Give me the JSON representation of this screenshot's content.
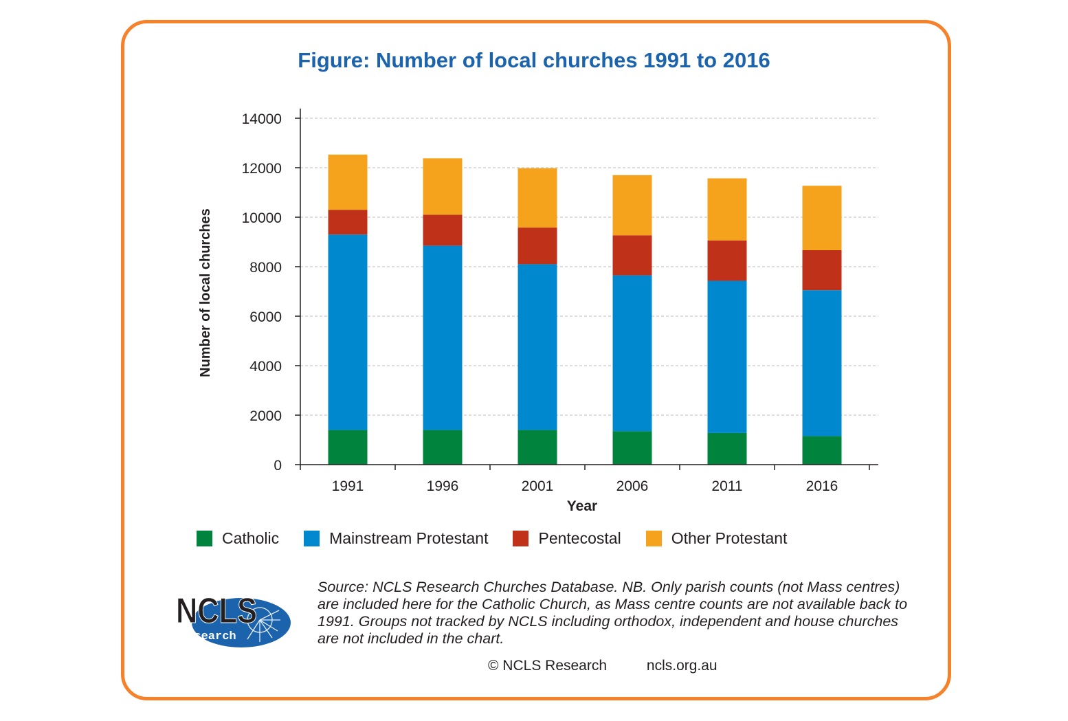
{
  "title": "Figure: Number of local churches 1991 to 2016",
  "colors": {
    "frame": "#f5822a",
    "title": "#1c63ae",
    "catholic": "#00843d",
    "mainstream_protestant": "#0088cf",
    "pentecostal": "#c0311a",
    "other_protestant": "#f5a21c",
    "grid": "#bdbdbd",
    "logo_blue": "#1c63ae"
  },
  "chart_data": {
    "type": "bar",
    "stacked": true,
    "categories": [
      "1991",
      "1996",
      "2001",
      "2006",
      "2011",
      "2016"
    ],
    "series": [
      {
        "name": "Catholic",
        "values": [
          1400,
          1400,
          1400,
          1350,
          1280,
          1150
        ]
      },
      {
        "name": "Mainstream Protestant",
        "values": [
          7900,
          7450,
          6700,
          6300,
          6150,
          5900
        ]
      },
      {
        "name": "Pentecostal",
        "values": [
          1000,
          1250,
          1480,
          1620,
          1630,
          1620
        ]
      },
      {
        "name": "Other Protestant",
        "values": [
          2230,
          2280,
          2400,
          2430,
          2510,
          2600
        ]
      }
    ],
    "xlabel": "Year",
    "ylabel": "Number of local churches",
    "ylim": [
      0,
      14000
    ],
    "yticks": [
      "0",
      "2000",
      "4000",
      "6000",
      "8000",
      "10000",
      "12000",
      "14000"
    ],
    "grid": true,
    "legend_position": "bottom"
  },
  "legend": {
    "items": [
      {
        "label": "Catholic",
        "color": "#00843d"
      },
      {
        "label": "Mainstream Protestant",
        "color": "#0088cf"
      },
      {
        "label": "Pentecostal",
        "color": "#c0311a"
      },
      {
        "label": "Other Protestant",
        "color": "#f5a21c"
      }
    ]
  },
  "source_note": "Source: NCLS Research Churches Database. NB. Only parish counts (not Mass centres) are included here for the Catholic Church, as Mass centre counts are not available back to 1991. Groups not tracked by NCLS including orthodox, independent and house churches are not included in the chart.",
  "footer": {
    "copyright": "© NCLS Research",
    "website": "ncls.org.au"
  },
  "logo": {
    "name_text": "NCLS",
    "tagline_text": "research"
  }
}
